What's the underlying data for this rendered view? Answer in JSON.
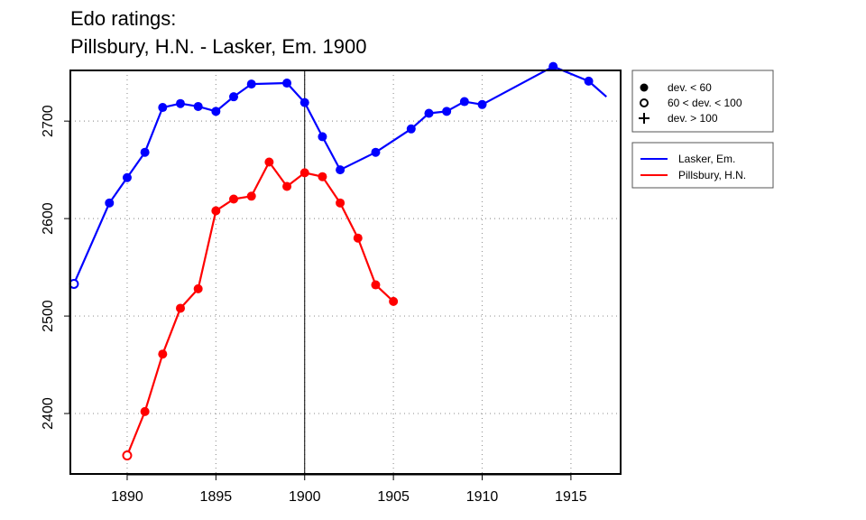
{
  "chart_data": {
    "type": "line",
    "title": [
      "Edo ratings:",
      "Pillsbury, H.N. - Lasker, Em. 1900"
    ],
    "xlim": [
      1886.8,
      1917.8
    ],
    "ylim": [
      2338,
      2752
    ],
    "x_ticks": [
      1890,
      1895,
      1900,
      1905,
      1910,
      1915
    ],
    "y_ticks": [
      2400,
      2500,
      2600,
      2700
    ],
    "vline": 1900,
    "grid": true,
    "series": [
      {
        "name": "Lasker, Em.",
        "color": "#0000ff",
        "points": [
          {
            "x": 1887,
            "y": 2533,
            "marker": "open"
          },
          {
            "x": 1889,
            "y": 2616,
            "marker": "filled"
          },
          {
            "x": 1890,
            "y": 2642,
            "marker": "filled"
          },
          {
            "x": 1891,
            "y": 2668,
            "marker": "filled"
          },
          {
            "x": 1892,
            "y": 2714,
            "marker": "filled"
          },
          {
            "x": 1893,
            "y": 2718,
            "marker": "filled"
          },
          {
            "x": 1894,
            "y": 2715,
            "marker": "filled"
          },
          {
            "x": 1895,
            "y": 2710,
            "marker": "filled"
          },
          {
            "x": 1896,
            "y": 2725,
            "marker": "filled"
          },
          {
            "x": 1897,
            "y": 2738,
            "marker": "filled"
          },
          {
            "x": 1899,
            "y": 2739,
            "marker": "filled"
          },
          {
            "x": 1900,
            "y": 2719,
            "marker": "filled"
          },
          {
            "x": 1901,
            "y": 2684,
            "marker": "filled"
          },
          {
            "x": 1902,
            "y": 2650,
            "marker": "filled"
          },
          {
            "x": 1904,
            "y": 2668,
            "marker": "filled"
          },
          {
            "x": 1906,
            "y": 2692,
            "marker": "filled"
          },
          {
            "x": 1907,
            "y": 2708,
            "marker": "filled"
          },
          {
            "x": 1908,
            "y": 2710,
            "marker": "filled"
          },
          {
            "x": 1909,
            "y": 2720,
            "marker": "filled"
          },
          {
            "x": 1910,
            "y": 2717,
            "marker": "filled"
          },
          {
            "x": 1914,
            "y": 2756,
            "marker": "filled"
          },
          {
            "x": 1916,
            "y": 2741,
            "marker": "filled"
          },
          {
            "x": 1917,
            "y": 2725,
            "marker": "none"
          }
        ]
      },
      {
        "name": "Pillsbury, H.N.",
        "color": "#ff0000",
        "points": [
          {
            "x": 1890,
            "y": 2357,
            "marker": "open"
          },
          {
            "x": 1891,
            "y": 2402,
            "marker": "filled"
          },
          {
            "x": 1892,
            "y": 2461,
            "marker": "filled"
          },
          {
            "x": 1893,
            "y": 2508,
            "marker": "filled"
          },
          {
            "x": 1894,
            "y": 2528,
            "marker": "filled"
          },
          {
            "x": 1895,
            "y": 2608,
            "marker": "filled"
          },
          {
            "x": 1896,
            "y": 2620,
            "marker": "filled"
          },
          {
            "x": 1897,
            "y": 2623,
            "marker": "filled"
          },
          {
            "x": 1898,
            "y": 2658,
            "marker": "filled"
          },
          {
            "x": 1899,
            "y": 2633,
            "marker": "filled"
          },
          {
            "x": 1900,
            "y": 2647,
            "marker": "filled"
          },
          {
            "x": 1901,
            "y": 2643,
            "marker": "filled"
          },
          {
            "x": 1902,
            "y": 2616,
            "marker": "filled"
          },
          {
            "x": 1903,
            "y": 2580,
            "marker": "filled"
          },
          {
            "x": 1904,
            "y": 2532,
            "marker": "filled"
          },
          {
            "x": 1905,
            "y": 2515,
            "marker": "filled"
          }
        ]
      }
    ],
    "marker_legend": [
      {
        "symbol": "filled",
        "label": "dev. < 60"
      },
      {
        "symbol": "open",
        "label": "60 < dev. < 100"
      },
      {
        "symbol": "plus",
        "label": "dev. > 100"
      }
    ],
    "legend_position": "right"
  }
}
